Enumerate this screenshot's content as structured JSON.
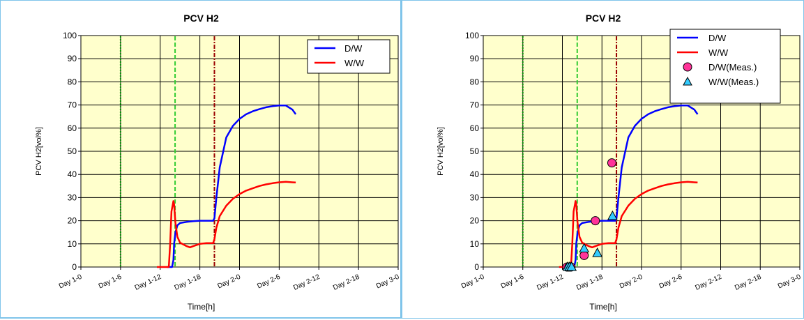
{
  "chart_data": [
    {
      "type": "line",
      "title": "PCV H2",
      "xlabel": "Time[h]",
      "ylabel": "PCV H2[vol%]",
      "x_ticks": [
        "Day 1-0",
        "Day 1-6",
        "Day 1-12",
        "Day 1-18",
        "Day 2-0",
        "Day 2-6",
        "Day 2-12",
        "Day 2-18",
        "Day 3-0"
      ],
      "x_unit": "hours from Day 1-0",
      "xlim": [
        0,
        48
      ],
      "ylim": [
        0,
        100
      ],
      "y_ticks": [
        0,
        10,
        20,
        30,
        40,
        50,
        60,
        70,
        80,
        90,
        100
      ],
      "grid": true,
      "background": "#ffffcc",
      "legend_position": "top-right",
      "vertical_markers": [
        {
          "x": 6,
          "color": "#009900",
          "style": "dotted"
        },
        {
          "x": 14.25,
          "color": "#33cc33",
          "style": "dashed"
        },
        {
          "x": 20.2,
          "color": "#990000",
          "style": "dash-dot"
        }
      ],
      "series": [
        {
          "name": "D/W",
          "color": "#0000ff",
          "type": "line",
          "x": [
            13.0,
            13.3,
            13.8,
            14.0,
            14.1,
            14.3,
            14.6,
            15.0,
            16.0,
            17.0,
            18.0,
            19.0,
            20.0,
            20.2,
            20.5,
            21.0,
            22.0,
            23.0,
            24.0,
            25.0,
            26.0,
            27.0,
            28.0,
            29.0,
            30.0,
            31.0,
            32.0,
            32.5
          ],
          "y": [
            0,
            0,
            0,
            3,
            10,
            15,
            18,
            19,
            19.5,
            19.8,
            20,
            20,
            20,
            21,
            30,
            43,
            56,
            61,
            64,
            66,
            67.3,
            68.2,
            69,
            69.5,
            69.8,
            69.8,
            68,
            66
          ]
        },
        {
          "name": "W/W",
          "color": "#ff0000",
          "type": "line",
          "x": [
            11.5,
            12.5,
            13.3,
            13.5,
            13.7,
            13.9,
            14.0,
            14.1,
            14.3,
            14.6,
            15.0,
            16.0,
            16.5,
            17.0,
            18.0,
            19.0,
            20.0,
            20.2,
            20.5,
            21.0,
            22.0,
            23.0,
            24.0,
            25.0,
            26.0,
            27.0,
            28.0,
            29.0,
            30.0,
            31.0,
            32.0,
            32.5
          ],
          "y": [
            0,
            0,
            0,
            10,
            24,
            27,
            28.5,
            27,
            19,
            13,
            10.5,
            9,
            8.5,
            9,
            10,
            10.3,
            10.3,
            12,
            17,
            22,
            26.5,
            29.5,
            31.5,
            33,
            34,
            35,
            35.7,
            36.2,
            36.6,
            36.8,
            36.6,
            36.5
          ]
        }
      ]
    },
    {
      "type": "line",
      "title": "PCV H2",
      "xlabel": "Time[h]",
      "ylabel": "PCV H2[vol%]",
      "x_ticks": [
        "Day 1-0",
        "Day 1-6",
        "Day 1-12",
        "Day 1-18",
        "Day 2-0",
        "Day 2-6",
        "Day 2-12",
        "Day 2-18",
        "Day 3-0"
      ],
      "x_unit": "hours from Day 1-0",
      "xlim": [
        0,
        48
      ],
      "ylim": [
        0,
        100
      ],
      "y_ticks": [
        0,
        10,
        20,
        30,
        40,
        50,
        60,
        70,
        80,
        90,
        100
      ],
      "grid": true,
      "background": "#ffffcc",
      "legend_position": "top-right",
      "vertical_markers": [
        {
          "x": 6,
          "color": "#009900",
          "style": "dotted"
        },
        {
          "x": 14.25,
          "color": "#33cc33",
          "style": "dashed"
        },
        {
          "x": 20.2,
          "color": "#990000",
          "style": "dash-dot"
        }
      ],
      "series": [
        {
          "name": "D/W",
          "color": "#0000ff",
          "type": "line",
          "x": [
            13.0,
            13.3,
            13.8,
            14.0,
            14.1,
            14.3,
            14.6,
            15.0,
            16.0,
            17.0,
            18.0,
            19.0,
            20.0,
            20.2,
            20.5,
            21.0,
            22.0,
            23.0,
            24.0,
            25.0,
            26.0,
            27.0,
            28.0,
            29.0,
            30.0,
            31.0,
            32.0,
            32.5
          ],
          "y": [
            0,
            0,
            0,
            3,
            10,
            15,
            18,
            19,
            19.5,
            19.8,
            20,
            20,
            20,
            21,
            30,
            43,
            56,
            61,
            64,
            66,
            67.3,
            68.2,
            69,
            69.5,
            69.8,
            69.8,
            68,
            66
          ]
        },
        {
          "name": "W/W",
          "color": "#ff0000",
          "type": "line",
          "x": [
            11.5,
            12.5,
            13.3,
            13.5,
            13.7,
            13.9,
            14.0,
            14.1,
            14.3,
            14.6,
            15.0,
            16.0,
            16.5,
            17.0,
            18.0,
            19.0,
            20.0,
            20.2,
            20.5,
            21.0,
            22.0,
            23.0,
            24.0,
            25.0,
            26.0,
            27.0,
            28.0,
            29.0,
            30.0,
            31.0,
            32.0,
            32.5
          ],
          "y": [
            0,
            0,
            0,
            10,
            24,
            27,
            28.5,
            27,
            19,
            13,
            10.5,
            9,
            8.5,
            9,
            10,
            10.3,
            10.3,
            12,
            17,
            22,
            26.5,
            29.5,
            31.5,
            33,
            34,
            35,
            35.7,
            36.2,
            36.6,
            36.8,
            36.6,
            36.5
          ]
        },
        {
          "name": "D/W(Meas.)",
          "color": "#ff3399",
          "type": "scatter",
          "marker": "circle",
          "x": [
            12.7,
            13.0,
            13.3,
            15.3,
            17.0,
            19.5
          ],
          "y": [
            0,
            0,
            0,
            5,
            20,
            45
          ]
        },
        {
          "name": "W/W(Meas.)",
          "color": "#33ccff",
          "type": "scatter",
          "marker": "triangle",
          "x": [
            12.8,
            13.1,
            13.4,
            15.3,
            17.3,
            19.6
          ],
          "y": [
            0,
            0,
            0,
            8,
            6,
            22
          ]
        }
      ]
    }
  ]
}
